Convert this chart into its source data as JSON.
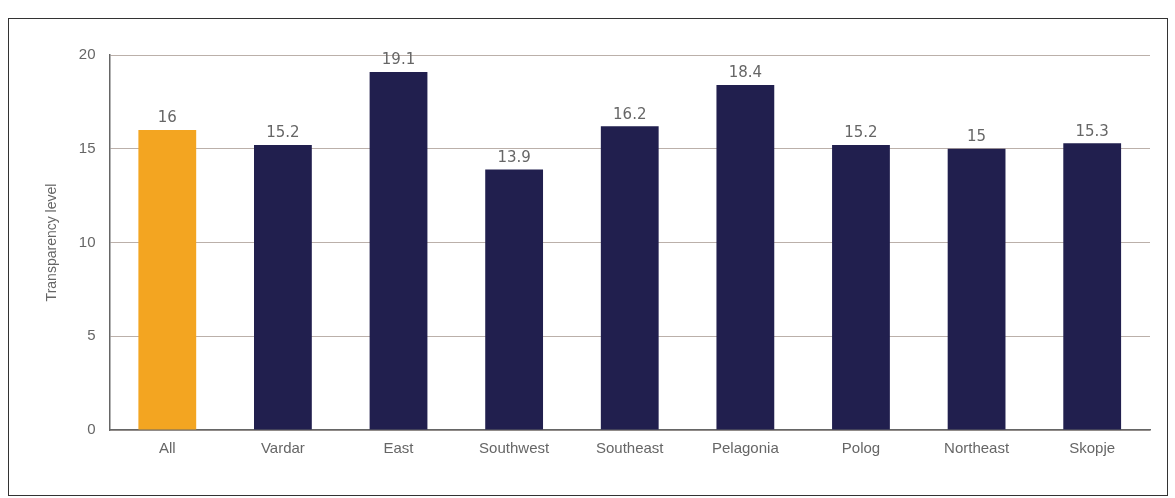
{
  "chart_data": {
    "type": "bar",
    "categories": [
      "All",
      "Vardar",
      "East",
      "Southwest",
      "Southeast",
      "Pelagonia",
      "Polog",
      "Northeast",
      "Skopje"
    ],
    "values": [
      16,
      15.2,
      19.1,
      13.9,
      16.2,
      18.4,
      15.2,
      15,
      15.3
    ],
    "colors": [
      "#f3a521",
      "#211f4e",
      "#211f4e",
      "#211f4e",
      "#211f4e",
      "#211f4e",
      "#211f4e",
      "#211f4e",
      "#211f4e"
    ],
    "ylabel": "Transparency level",
    "ylim": [
      0,
      20
    ],
    "yticks": [
      0,
      5,
      10,
      15,
      20
    ],
    "grid": "y",
    "data_labels": true,
    "legend": false
  }
}
